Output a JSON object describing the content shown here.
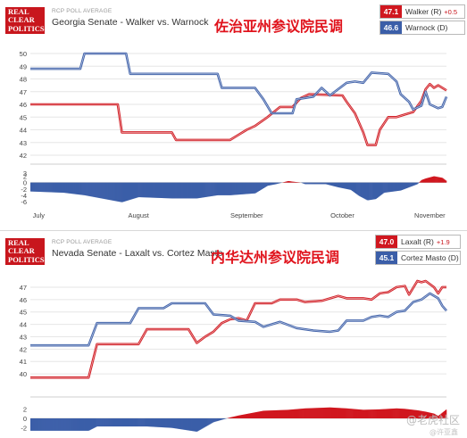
{
  "logo": {
    "line1": "REAL",
    "line2": "CLEAR",
    "line3": "POLITICS"
  },
  "watermark": {
    "main": "@老虎社区",
    "sub": "@许亚鑫"
  },
  "colors": {
    "rep": "#d0171f",
    "dem": "#3b5ea8",
    "brand": "#c8161d"
  },
  "panels": [
    {
      "label": "RCP POLL AVERAGE",
      "title": "Georgia Senate - Walker vs. Warnock",
      "cn_title": "佐治亚州参议院民调",
      "legend": [
        {
          "value": "47.1",
          "name": "Walker (R)",
          "spread": "+0.5"
        },
        {
          "value": "46.6",
          "name": "Warnock (D)",
          "spread": ""
        }
      ]
    },
    {
      "label": "RCP POLL AVERAGE",
      "title": "Nevada Senate - Laxalt vs. Cortez Masto",
      "cn_title": "内华达州参议院民调",
      "legend": [
        {
          "value": "47.0",
          "name": "Laxalt (R)",
          "spread": "+1.9"
        },
        {
          "value": "45.1",
          "name": "Cortez Masto (D)",
          "spread": ""
        }
      ]
    }
  ],
  "chart_data": [
    {
      "type": "line",
      "x_range": [
        0,
        100
      ],
      "ylim": [
        42,
        50
      ],
      "yticks": [
        "50",
        "49",
        "48",
        "47",
        "46",
        "45",
        "44",
        "43",
        "42"
      ],
      "spread_ylim": [
        -6,
        3
      ],
      "spread_ticks": [
        "3",
        "2",
        "0",
        "-2",
        "-4",
        "-6"
      ],
      "xticks": [
        {
          "label": "July",
          "x": 2
        },
        {
          "label": "August",
          "x": 26
        },
        {
          "label": "September",
          "x": 52
        },
        {
          "label": "October",
          "x": 75
        },
        {
          "label": "November",
          "x": 96
        }
      ],
      "series": [
        {
          "name": "Walker (R)",
          "color": "#d0171f",
          "points": [
            [
              0,
              46
            ],
            [
              21,
              46
            ],
            [
              22,
              43.8
            ],
            [
              34,
              43.8
            ],
            [
              35,
              43.2
            ],
            [
              48,
              43.2
            ],
            [
              50,
              43.6
            ],
            [
              52,
              44
            ],
            [
              54,
              44.3
            ],
            [
              57,
              45
            ],
            [
              60,
              45.8
            ],
            [
              63,
              45.8
            ],
            [
              65,
              46.5
            ],
            [
              67,
              46.8
            ],
            [
              75,
              46.7
            ],
            [
              76,
              46.2
            ],
            [
              78,
              45.3
            ],
            [
              80,
              43.8
            ],
            [
              81,
              42.8
            ],
            [
              83,
              42.8
            ],
            [
              84,
              44
            ],
            [
              86,
              45
            ],
            [
              88,
              45
            ],
            [
              90,
              45.2
            ],
            [
              92,
              45.4
            ],
            [
              94,
              46.3
            ],
            [
              95,
              47.2
            ],
            [
              96,
              47.6
            ],
            [
              97,
              47.3
            ],
            [
              98,
              47.5
            ],
            [
              100,
              47.1
            ]
          ]
        },
        {
          "name": "Warnock (D)",
          "color": "#3b5ea8",
          "points": [
            [
              0,
              48.8
            ],
            [
              12,
              48.8
            ],
            [
              13,
              50
            ],
            [
              23,
              50
            ],
            [
              24,
              48.4
            ],
            [
              45,
              48.4
            ],
            [
              46,
              47.3
            ],
            [
              54,
              47.3
            ],
            [
              56,
              46.4
            ],
            [
              58,
              45.3
            ],
            [
              63,
              45.3
            ],
            [
              64,
              46.4
            ],
            [
              68,
              46.6
            ],
            [
              70,
              47.3
            ],
            [
              72,
              46.7
            ],
            [
              76,
              47.7
            ],
            [
              78,
              47.8
            ],
            [
              80,
              47.7
            ],
            [
              82,
              48.5
            ],
            [
              86,
              48.4
            ],
            [
              87,
              48.1
            ],
            [
              88,
              47.8
            ],
            [
              89,
              46.8
            ],
            [
              91,
              46.2
            ],
            [
              92,
              45.6
            ],
            [
              94,
              45.9
            ],
            [
              95,
              47
            ],
            [
              96,
              46
            ],
            [
              98,
              45.7
            ],
            [
              99,
              45.8
            ],
            [
              100,
              46.6
            ]
          ]
        }
      ],
      "spread": {
        "color_rep": "#d0171f",
        "color_dem": "#3b5ea8",
        "points": [
          [
            0,
            -2.8
          ],
          [
            8,
            -3.2
          ],
          [
            13,
            -4
          ],
          [
            22,
            -6.2
          ],
          [
            26,
            -4.6
          ],
          [
            34,
            -5
          ],
          [
            40,
            -5
          ],
          [
            45,
            -4
          ],
          [
            48,
            -4
          ],
          [
            54,
            -3.4
          ],
          [
            57,
            -1
          ],
          [
            59,
            -0.5
          ],
          [
            62,
            0.5
          ],
          [
            63,
            0.3
          ],
          [
            65,
            0
          ],
          [
            66,
            -0.5
          ],
          [
            71,
            -0.5
          ],
          [
            74,
            -1.5
          ],
          [
            77,
            -2.3
          ],
          [
            79,
            -4.2
          ],
          [
            81,
            -5.6
          ],
          [
            83,
            -5.2
          ],
          [
            85,
            -3.2
          ],
          [
            89,
            -2.5
          ],
          [
            91,
            -1.5
          ],
          [
            93,
            -0.5
          ],
          [
            94,
            0.8
          ],
          [
            95,
            1.3
          ],
          [
            97,
            2
          ],
          [
            99,
            1.5
          ],
          [
            100,
            0.5
          ]
        ]
      }
    },
    {
      "type": "line",
      "x_range": [
        0,
        100
      ],
      "ylim": [
        39,
        47.5
      ],
      "yticks": [
        "47",
        "46",
        "45",
        "44",
        "43",
        "42",
        "41",
        "40"
      ],
      "spread_ylim": [
        -3,
        3
      ],
      "spread_ticks": [
        "2",
        "0",
        "-2"
      ],
      "xticks": [],
      "series": [
        {
          "name": "Laxalt (R)",
          "color": "#d0171f",
          "points": [
            [
              0,
              39.7
            ],
            [
              14,
              39.7
            ],
            [
              16,
              42.4
            ],
            [
              26,
              42.4
            ],
            [
              28,
              43.6
            ],
            [
              38,
              43.6
            ],
            [
              40,
              42.5
            ],
            [
              42,
              43
            ],
            [
              44,
              43.4
            ],
            [
              46,
              44.1
            ],
            [
              48,
              44.4
            ],
            [
              50,
              44.5
            ],
            [
              52,
              44.3
            ],
            [
              54,
              45.7
            ],
            [
              58,
              45.7
            ],
            [
              60,
              46
            ],
            [
              64,
              46
            ],
            [
              66,
              45.8
            ],
            [
              70,
              45.9
            ],
            [
              74,
              46.3
            ],
            [
              76,
              46.1
            ],
            [
              80,
              46.1
            ],
            [
              82,
              46
            ],
            [
              84,
              46.5
            ],
            [
              86,
              46.6
            ],
            [
              88,
              47
            ],
            [
              90,
              47.1
            ],
            [
              91,
              46.4
            ],
            [
              93,
              47.5
            ],
            [
              94,
              47.4
            ],
            [
              95,
              47.5
            ],
            [
              97,
              47
            ],
            [
              98,
              46.5
            ],
            [
              99,
              47
            ],
            [
              100,
              47
            ]
          ]
        },
        {
          "name": "Cortez Masto (D)",
          "color": "#3b5ea8",
          "points": [
            [
              0,
              42.3
            ],
            [
              14,
              42.3
            ],
            [
              16,
              44.1
            ],
            [
              24,
              44.1
            ],
            [
              26,
              45.3
            ],
            [
              32,
              45.3
            ],
            [
              34,
              45.7
            ],
            [
              42,
              45.7
            ],
            [
              44,
              44.8
            ],
            [
              48,
              44.7
            ],
            [
              50,
              44.3
            ],
            [
              54,
              44.2
            ],
            [
              56,
              43.8
            ],
            [
              60,
              44.2
            ],
            [
              64,
              43.7
            ],
            [
              68,
              43.5
            ],
            [
              72,
              43.4
            ],
            [
              74,
              43.5
            ],
            [
              76,
              44.3
            ],
            [
              80,
              44.3
            ],
            [
              82,
              44.6
            ],
            [
              84,
              44.7
            ],
            [
              86,
              44.6
            ],
            [
              88,
              45
            ],
            [
              90,
              45.1
            ],
            [
              92,
              45.8
            ],
            [
              94,
              46
            ],
            [
              96,
              46.5
            ],
            [
              98,
              46.1
            ],
            [
              99,
              45.5
            ],
            [
              100,
              45.1
            ]
          ]
        }
      ],
      "spread": {
        "color_rep": "#d0171f",
        "color_dem": "#3b5ea8",
        "points": [
          [
            0,
            -2.6
          ],
          [
            14,
            -2.6
          ],
          [
            16,
            -1.7
          ],
          [
            24,
            -1.7
          ],
          [
            28,
            -1.7
          ],
          [
            34,
            -2
          ],
          [
            40,
            -2.8
          ],
          [
            44,
            -0.8
          ],
          [
            46,
            -0.3
          ],
          [
            48,
            0.2
          ],
          [
            50,
            0.6
          ],
          [
            56,
            1.6
          ],
          [
            62,
            1.8
          ],
          [
            66,
            2.1
          ],
          [
            72,
            2.3
          ],
          [
            76,
            2.1
          ],
          [
            80,
            1.8
          ],
          [
            84,
            1.9
          ],
          [
            88,
            2.1
          ],
          [
            90,
            2
          ],
          [
            93,
            1.7
          ],
          [
            95,
            1.4
          ],
          [
            97,
            1
          ],
          [
            98,
            0.5
          ],
          [
            100,
            1.9
          ]
        ]
      }
    }
  ]
}
